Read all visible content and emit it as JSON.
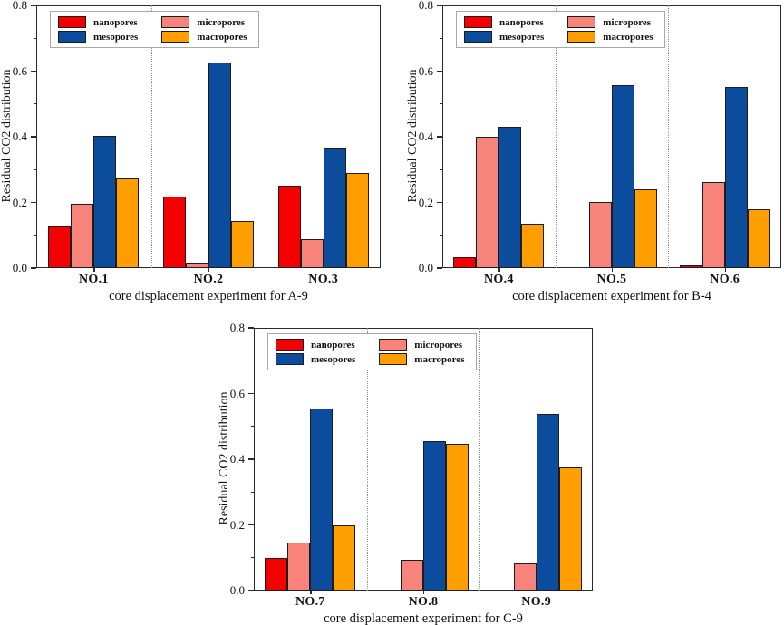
{
  "figure": {
    "background": "#ffffff",
    "axis_color": "#2a2a2a",
    "separator_color": "#8f8f8f",
    "series_colors": {
      "nanopores": "#f40000",
      "micropores": "#f8837b",
      "mesopores": "#0b4c9c",
      "macropores": "#ff9e00"
    }
  },
  "chart_data": [
    {
      "type": "bar",
      "title": "",
      "xlabel": "core displacement experiment for A-9",
      "ylabel": "Residual CO2 distribution",
      "ylim": [
        0,
        0.8
      ],
      "yticks": [
        "0.0",
        "0.2",
        "0.4",
        "0.6",
        "0.8"
      ],
      "grid": false,
      "legend_position": "top-left",
      "categories": [
        "NO.1",
        "NO.2",
        "NO.3"
      ],
      "series": [
        {
          "name": "nanopores",
          "color": "#f40000",
          "values": [
            0.126,
            0.218,
            0.252
          ]
        },
        {
          "name": "micropores",
          "color": "#f8837b",
          "values": [
            0.197,
            0.016,
            0.089
          ]
        },
        {
          "name": "mesopores",
          "color": "#0b4c9c",
          "values": [
            0.404,
            0.625,
            0.366
          ]
        },
        {
          "name": "macropores",
          "color": "#ff9e00",
          "values": [
            0.272,
            0.143,
            0.291
          ]
        }
      ]
    },
    {
      "type": "bar",
      "title": "",
      "xlabel": "core displacement experiment for B-4",
      "ylabel": "Residual CO2 distribution",
      "ylim": [
        0,
        0.8
      ],
      "yticks": [
        "0.0",
        "0.2",
        "0.4",
        "0.6",
        "0.8"
      ],
      "grid": false,
      "legend_position": "top-left",
      "categories": [
        "NO.4",
        "NO.5",
        "NO.6"
      ],
      "series": [
        {
          "name": "nanopores",
          "color": "#f40000",
          "values": [
            0.033,
            0,
            0.008
          ]
        },
        {
          "name": "micropores",
          "color": "#f8837b",
          "values": [
            0.401,
            0.201,
            0.262
          ]
        },
        {
          "name": "mesopores",
          "color": "#0b4c9c",
          "values": [
            0.431,
            0.558,
            0.552
          ]
        },
        {
          "name": "macropores",
          "color": "#ff9e00",
          "values": [
            0.134,
            0.24,
            0.178
          ]
        }
      ]
    },
    {
      "type": "bar",
      "title": "",
      "xlabel": "core displacement experiment for C-9",
      "ylabel": "Residual CO2 distribution",
      "ylim": [
        0,
        0.8
      ],
      "yticks": [
        "0.0",
        "0.2",
        "0.4",
        "0.6",
        "0.8"
      ],
      "grid": false,
      "legend_position": "top-left",
      "categories": [
        "NO.7",
        "NO.8",
        "NO.9"
      ],
      "series": [
        {
          "name": "nanopores",
          "color": "#f40000",
          "values": [
            0.099,
            0,
            0
          ]
        },
        {
          "name": "micropores",
          "color": "#f8837b",
          "values": [
            0.147,
            0.094,
            0.084
          ]
        },
        {
          "name": "mesopores",
          "color": "#0b4c9c",
          "values": [
            0.554,
            0.455,
            0.538
          ]
        },
        {
          "name": "macropores",
          "color": "#ff9e00",
          "values": [
            0.199,
            0.448,
            0.376
          ]
        }
      ]
    }
  ]
}
